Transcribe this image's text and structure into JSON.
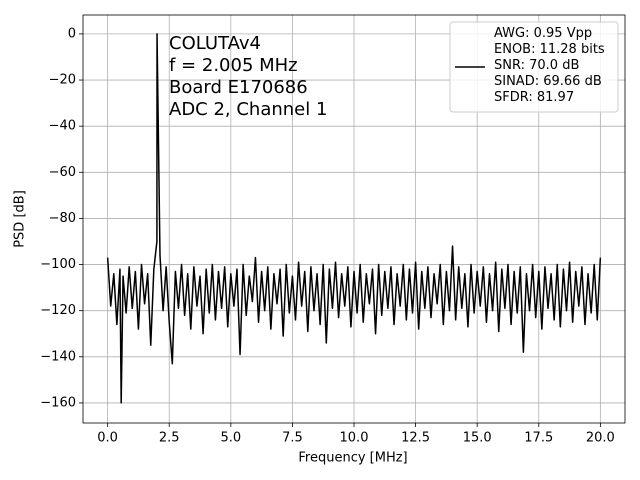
{
  "chart_data": {
    "type": "line",
    "xlabel": "Frequency [MHz]",
    "ylabel": "PSD [dB]",
    "annotation": [
      "COLUTAv4",
      "f = 2.005 MHz",
      "Board E170686",
      "ADC 2, Channel 1"
    ],
    "xlim": [
      -1.0,
      21.0
    ],
    "ylim": [
      -168.7,
      8.2
    ],
    "xticks": [
      {
        "value": 0,
        "label": "0.0"
      },
      {
        "value": 2.5,
        "label": "2.5"
      },
      {
        "value": 5,
        "label": "5.0"
      },
      {
        "value": 7.5,
        "label": "7.5"
      },
      {
        "value": 10,
        "label": "10.0"
      },
      {
        "value": 12.5,
        "label": "12.5"
      },
      {
        "value": 15,
        "label": "15.0"
      },
      {
        "value": 17.5,
        "label": "17.5"
      },
      {
        "value": 20,
        "label": "20.0"
      }
    ],
    "yticks": [
      0,
      {
        "value": -20,
        "label": "−20"
      },
      {
        "value": -40,
        "label": "−40"
      },
      {
        "value": -60,
        "label": "−60"
      },
      {
        "value": -80,
        "label": "−80"
      },
      {
        "value": -100,
        "label": "−100"
      },
      {
        "value": -120,
        "label": "−120"
      },
      {
        "value": -140,
        "label": "−140"
      },
      {
        "value": -160,
        "label": "−160"
      }
    ],
    "grid": true,
    "legend": "upper right",
    "x": [
      0,
      0.125,
      0.25,
      0.375,
      0.5,
      0.55,
      0.625,
      0.75,
      0.875,
      1,
      1.125,
      1.25,
      1.375,
      1.5,
      1.625,
      1.75,
      1.875,
      2,
      2.005,
      2.125,
      2.25,
      2.375,
      2.5,
      2.625,
      2.75,
      2.875,
      3,
      3.125,
      3.25,
      3.375,
      3.5,
      3.625,
      3.75,
      3.875,
      4,
      4.125,
      4.25,
      4.375,
      4.5,
      4.625,
      4.75,
      4.875,
      5,
      5.125,
      5.25,
      5.375,
      5.5,
      5.625,
      5.75,
      5.875,
      6,
      6.125,
      6.25,
      6.375,
      6.5,
      6.625,
      6.75,
      6.875,
      7,
      7.125,
      7.25,
      7.375,
      7.5,
      7.625,
      7.75,
      7.875,
      8,
      8.125,
      8.25,
      8.375,
      8.5,
      8.625,
      8.75,
      8.875,
      9,
      9.125,
      9.25,
      9.375,
      9.5,
      9.625,
      9.75,
      9.875,
      10,
      10.125,
      10.25,
      10.375,
      10.5,
      10.625,
      10.75,
      10.875,
      11,
      11.125,
      11.25,
      11.375,
      11.5,
      11.625,
      11.75,
      11.875,
      12,
      12.125,
      12.25,
      12.375,
      12.5,
      12.625,
      12.75,
      12.875,
      13,
      13.125,
      13.25,
      13.375,
      13.5,
      13.625,
      13.75,
      13.875,
      14,
      14.125,
      14.25,
      14.375,
      14.5,
      14.625,
      14.75,
      14.875,
      15,
      15.125,
      15.25,
      15.375,
      15.5,
      15.625,
      15.75,
      15.875,
      16,
      16.125,
      16.25,
      16.375,
      16.5,
      16.625,
      16.75,
      16.875,
      17,
      17.125,
      17.25,
      17.375,
      17.5,
      17.625,
      17.75,
      17.875,
      18,
      18.125,
      18.25,
      18.375,
      18.5,
      18.625,
      18.75,
      18.875,
      19,
      19.125,
      19.25,
      19.375,
      19.5,
      19.625,
      19.75,
      19.875,
      20
    ],
    "series": [
      {
        "name": "AWG: 0.95 Vpp\nENOB: 11.28 bits\nSNR: 70.0 dB\nSINAD: 69.66 dB\nSFDR: 81.97",
        "color": "#000000",
        "values": [
          -97,
          -118,
          -104,
          -126,
          -102,
          -160,
          -105,
          -121,
          -101,
          -119,
          -103,
          -128,
          -100,
          -117,
          -104,
          -135,
          -102,
          -90,
          0,
          -96,
          -120,
          -101,
          -125,
          -143,
          -103,
          -119,
          -100,
          -122,
          -104,
          -128,
          -101,
          -118,
          -105,
          -130,
          -102,
          -121,
          -100,
          -124,
          -103,
          -119,
          -101,
          -127,
          -104,
          -118,
          -102,
          -139,
          -100,
          -122,
          -105,
          -116,
          -97,
          -125,
          -103,
          -120,
          -101,
          -128,
          -104,
          -117,
          -102,
          -131,
          -100,
          -121,
          -105,
          -124,
          -99,
          -118,
          -103,
          -129,
          -101,
          -120,
          -104,
          -126,
          -100,
          -134,
          -102,
          -119,
          -99,
          -123,
          -104,
          -118,
          -101,
          -127,
          -103,
          -121,
          -100,
          -125,
          -104,
          -117,
          -102,
          -130,
          -100,
          -122,
          -103,
          -119,
          -101,
          -126,
          -104,
          -118,
          -100,
          -124,
          -102,
          -121,
          -99,
          -128,
          -103,
          -119,
          -101,
          -123,
          -104,
          -117,
          -100,
          -126,
          -103,
          -120,
          -92,
          -124,
          -101,
          -119,
          -104,
          -127,
          -100,
          -121,
          -103,
          -118,
          -101,
          -125,
          -104,
          -120,
          -99,
          -129,
          -102,
          -119,
          -100,
          -126,
          -103,
          -121,
          -101,
          -138,
          -104,
          -120,
          -100,
          -123,
          -103,
          -128,
          -101,
          -119,
          -104,
          -124,
          -100,
          -127,
          -102,
          -120,
          -99,
          -125,
          -103,
          -118,
          -101,
          -126,
          -104,
          -121,
          -100,
          -124,
          -97
        ]
      }
    ]
  }
}
